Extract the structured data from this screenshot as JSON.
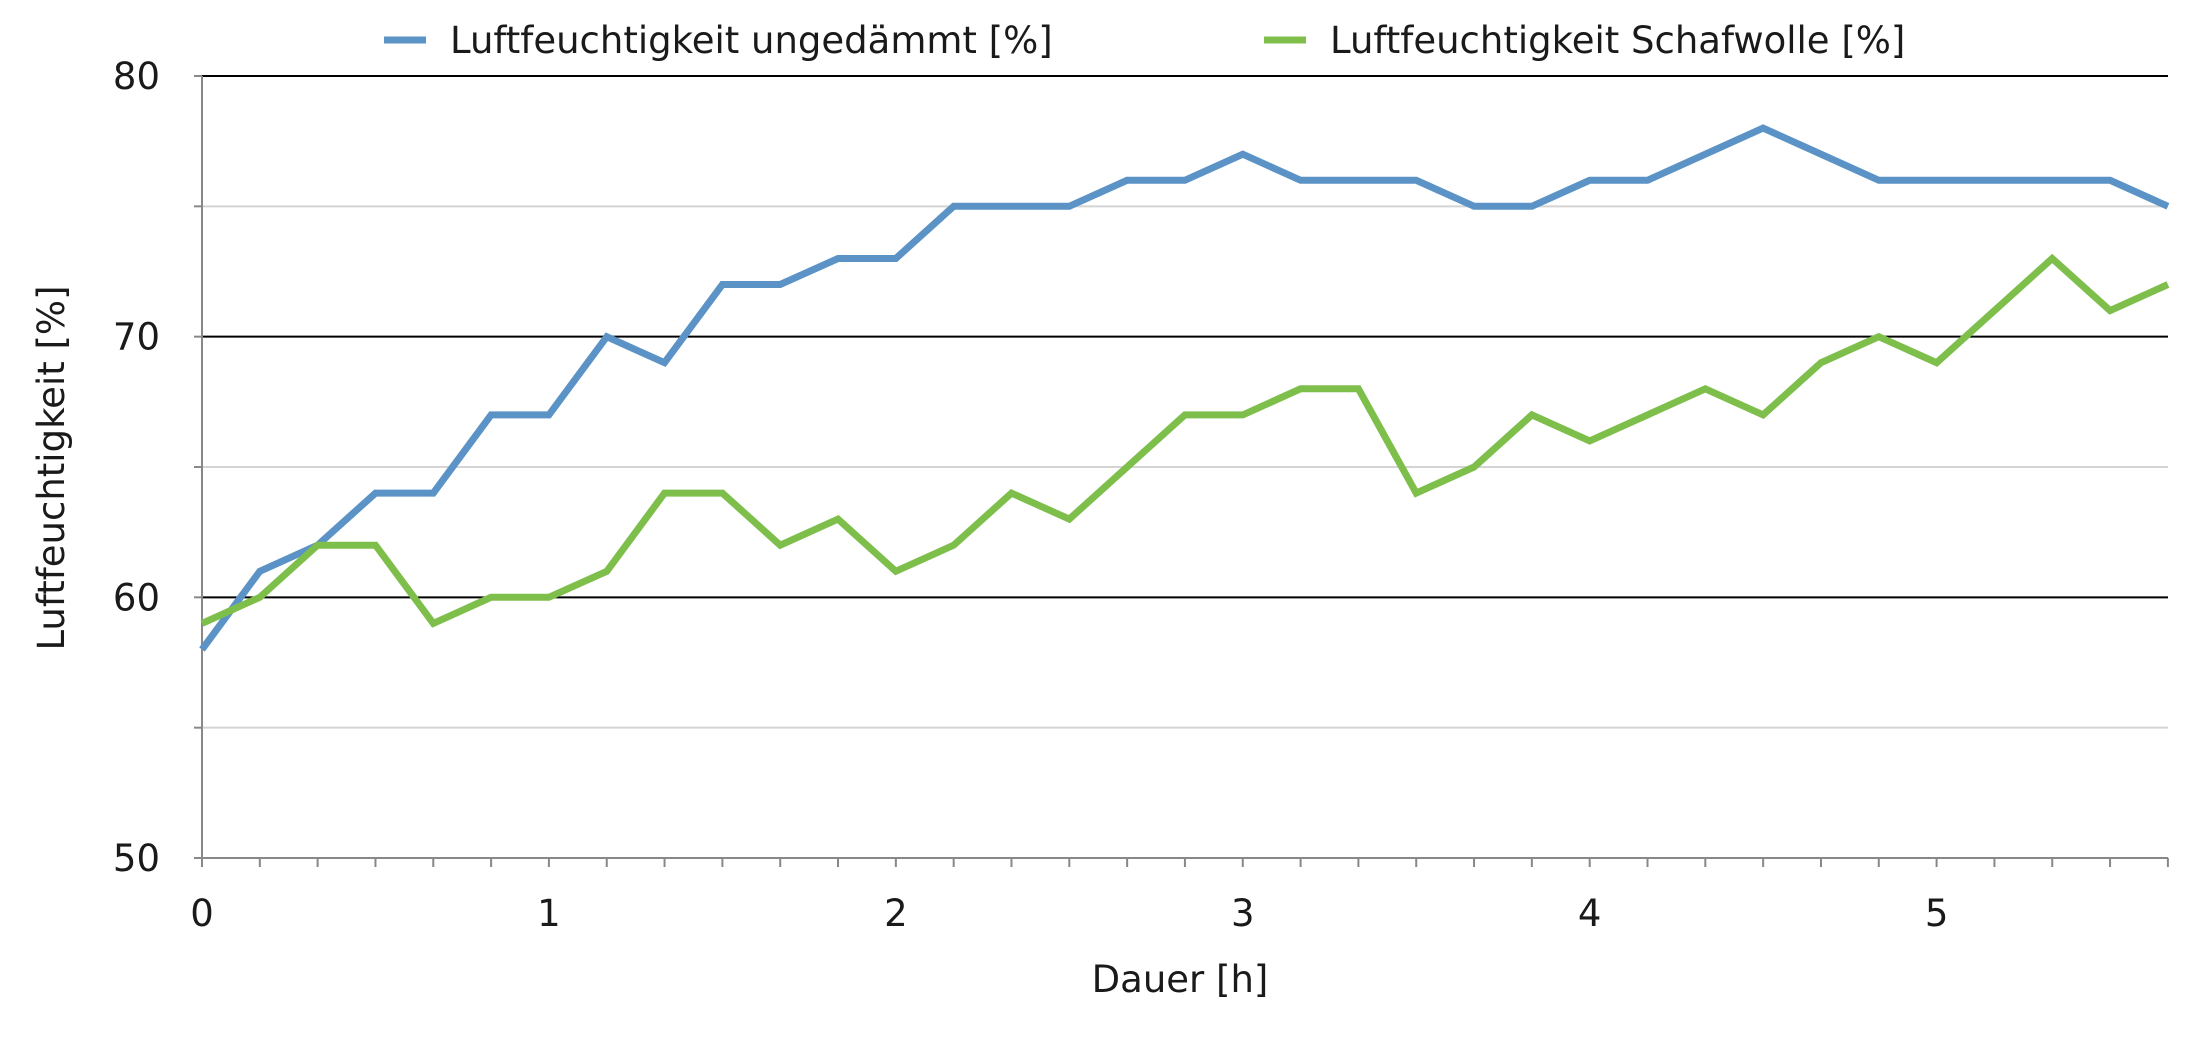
{
  "chart_data": {
    "type": "line",
    "xlabel": "Dauer [h]",
    "ylabel": "Luftfeuchtigkeit [%]",
    "xlim": [
      0,
      5.667
    ],
    "ylim": [
      50,
      80
    ],
    "x_ticks": [
      "0",
      "1",
      "2",
      "3",
      "4",
      "5"
    ],
    "y_ticks": [
      "50",
      "60",
      "70",
      "80"
    ],
    "y_major_gridlines": [
      60,
      70,
      80
    ],
    "y_minor_gridlines": [
      55,
      65,
      75
    ],
    "grid": true,
    "legend_position": "top",
    "x": [
      0,
      0.1667,
      0.3333,
      0.5,
      0.6667,
      0.8333,
      1,
      1.1667,
      1.3333,
      1.5,
      1.6667,
      1.8333,
      2,
      2.1667,
      2.3333,
      2.5,
      2.6667,
      2.8333,
      3,
      3.1667,
      3.3333,
      3.5,
      3.6667,
      3.8333,
      4,
      4.1667,
      4.3333,
      4.5,
      4.6667,
      4.8333,
      5,
      5.1667,
      5.3333,
      5.5,
      5.6667
    ],
    "series": [
      {
        "name": "Luftfeuchtigkeit ungedämmt [%]",
        "color": "#5b93c6",
        "values": [
          58,
          61,
          62,
          64,
          64,
          67,
          67,
          70,
          69,
          72,
          72,
          73,
          73,
          75,
          75,
          75,
          76,
          76,
          77,
          76,
          76,
          76,
          75,
          75,
          76,
          76,
          77,
          78,
          77,
          76,
          76,
          76,
          76,
          76,
          75
        ]
      },
      {
        "name": "Luftfeuchtigkeit Schafwolle [%]",
        "color": "#7ebf4c",
        "values": [
          59,
          60,
          62,
          62,
          59,
          60,
          60,
          61,
          64,
          64,
          62,
          63,
          61,
          62,
          64,
          63,
          65,
          67,
          67,
          68,
          68,
          64,
          65,
          67,
          66,
          67,
          68,
          67,
          69,
          70,
          69,
          71,
          73,
          71,
          72
        ]
      }
    ]
  }
}
